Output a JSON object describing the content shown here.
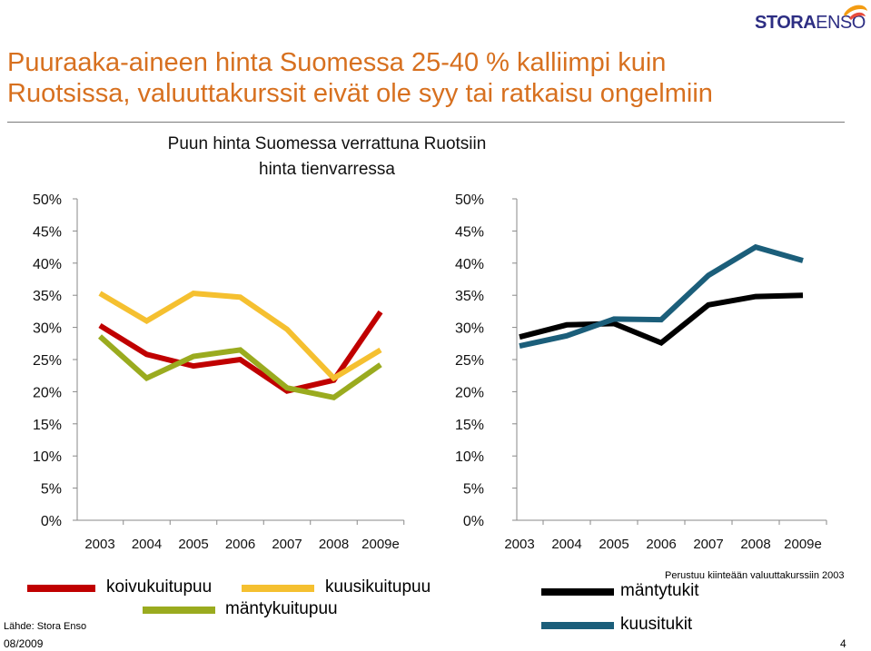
{
  "slide": {
    "title_line1": "Puuraaka-aineen hinta Suomessa 25-40 % kalliimpi kuin",
    "title_line2": "Ruotsissa, valuuttakurssit eivät ole syy tai ratkaisu ongelmiin",
    "chart_title_line1": "Puun hinta Suomessa verrattuna Ruotsiin",
    "chart_title_line2": "hinta tienvarressa",
    "source": "Lähde: Stora Enso",
    "date": "08/2009",
    "page_number": "4",
    "note": "Perustuu kiinteään valuuttakurssiin 2003",
    "logo_text": "STORAENSO"
  },
  "colors": {
    "title": "#d7701f",
    "koivukuitupuu": "#c00000",
    "kuusikuitupuu": "#f5c030",
    "mantykuitupuu": "#9aab1f",
    "mantytukit": "#000000",
    "kuusitukit": "#1b5e7a"
  },
  "chart_data": [
    {
      "type": "line",
      "title": "",
      "categories": [
        "2003",
        "2004",
        "2005",
        "2006",
        "2007",
        "2008",
        "2009e"
      ],
      "y_ticks": [
        "0%",
        "5%",
        "10%",
        "15%",
        "20%",
        "25%",
        "30%",
        "35%",
        "40%",
        "45%",
        "50%"
      ],
      "ylim": [
        0,
        50
      ],
      "grid": false,
      "series": [
        {
          "name": "koivukuitupuu",
          "color": "#c00000",
          "values": [
            30.3,
            25.8,
            24.0,
            25.0,
            20.1,
            21.8,
            32.4
          ]
        },
        {
          "name": "kuusikuitupuu",
          "color": "#f5c030",
          "values": [
            35.3,
            31.0,
            35.3,
            34.7,
            29.7,
            22.1,
            26.5
          ]
        },
        {
          "name": "mäntykuitupuu",
          "color": "#9aab1f",
          "values": [
            28.6,
            22.1,
            25.5,
            26.5,
            20.6,
            19.1,
            24.2
          ]
        }
      ]
    },
    {
      "type": "line",
      "title": "",
      "categories": [
        "2003",
        "2004",
        "2005",
        "2006",
        "2007",
        "2008",
        "2009e"
      ],
      "y_ticks": [
        "0%",
        "5%",
        "10%",
        "15%",
        "20%",
        "25%",
        "30%",
        "35%",
        "40%",
        "45%",
        "50%"
      ],
      "ylim": [
        0,
        50
      ],
      "grid": false,
      "series": [
        {
          "name": "mäntytukit",
          "color": "#000000",
          "values": [
            28.5,
            30.4,
            30.6,
            27.6,
            33.5,
            34.8,
            35.0
          ]
        },
        {
          "name": "kuusitukit",
          "color": "#1b5e7a",
          "values": [
            27.1,
            28.7,
            31.3,
            31.2,
            38.1,
            42.5,
            40.4
          ]
        }
      ]
    }
  ]
}
